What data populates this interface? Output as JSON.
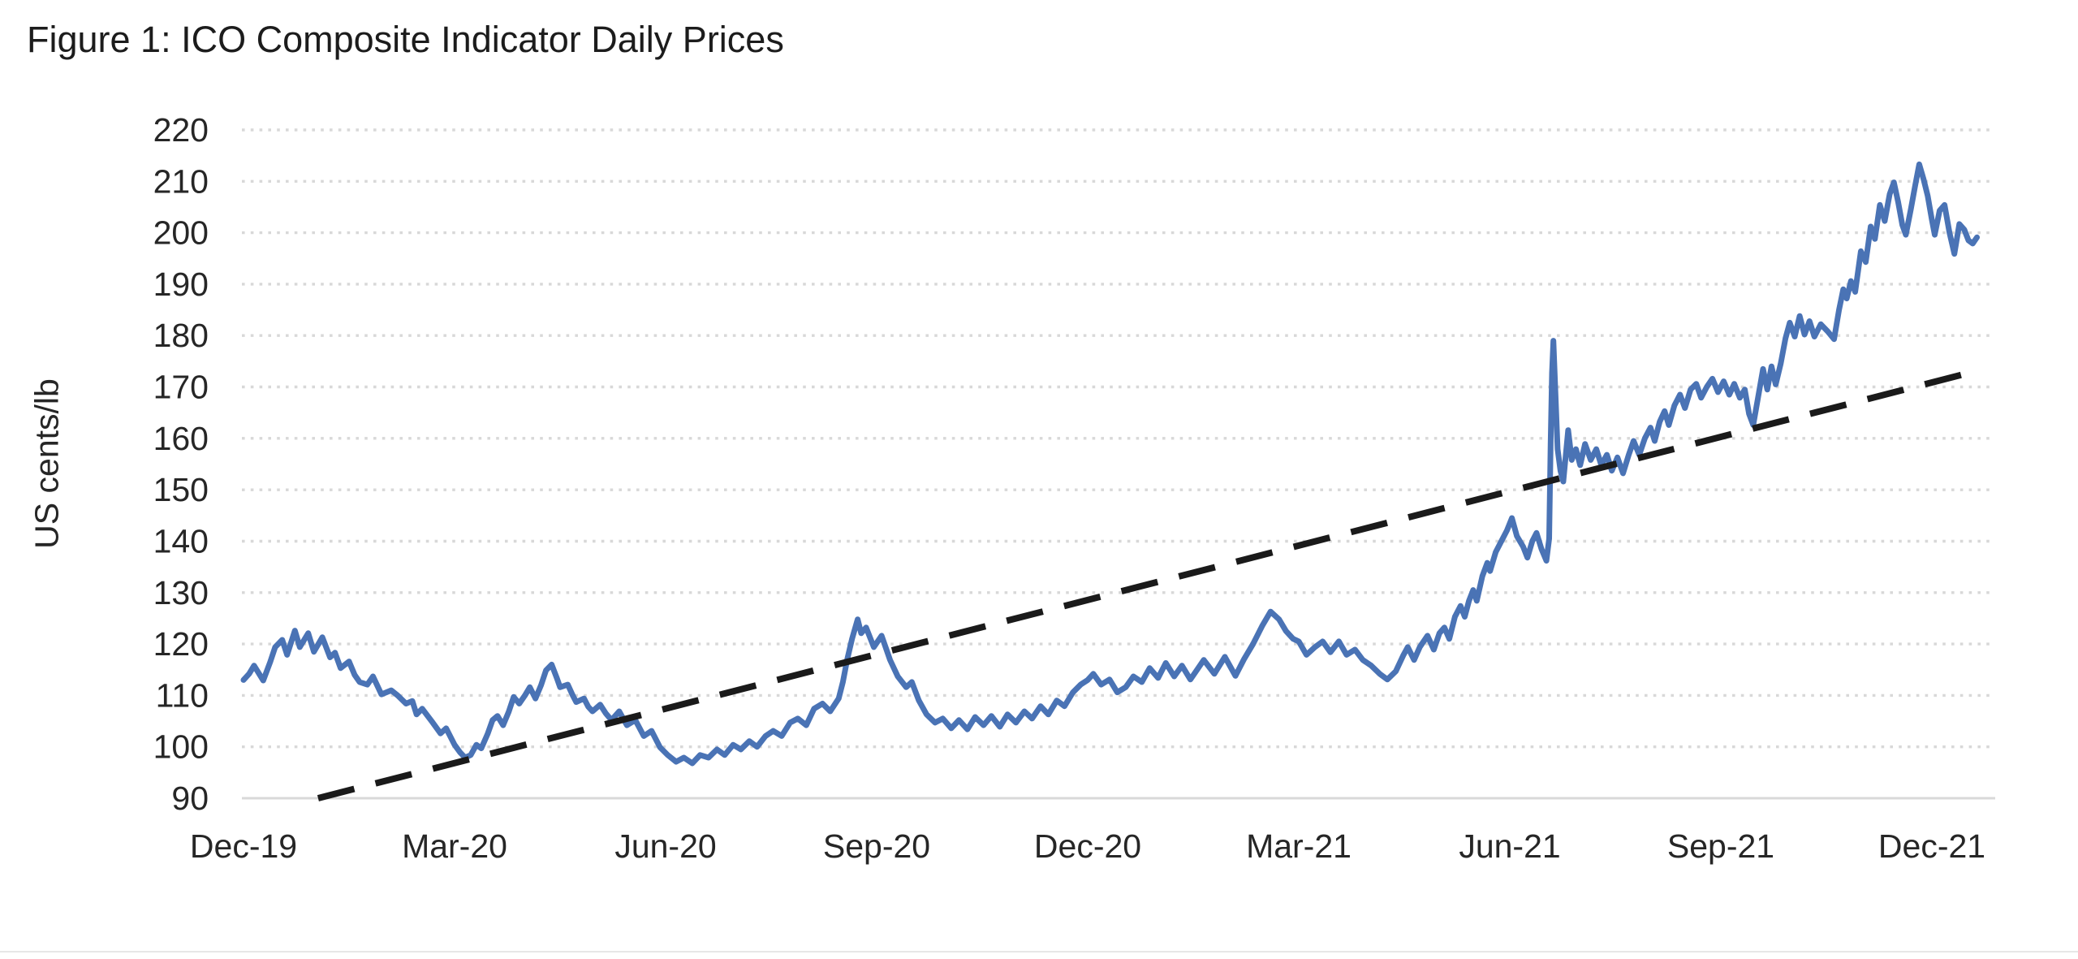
{
  "chart_data": {
    "type": "line",
    "title": "Figure 1: ICO Composite Indicator Daily Prices",
    "xlabel": "",
    "ylabel": "US cents/lb",
    "ylim": [
      90,
      220
    ],
    "y_ticks": [
      90,
      100,
      110,
      120,
      130,
      140,
      150,
      160,
      170,
      180,
      190,
      200,
      210,
      220
    ],
    "x_tick_labels": [
      "Dec-19",
      "Mar-20",
      "Jun-20",
      "Sep-20",
      "Dec-20",
      "Mar-21",
      "Jun-21",
      "Sep-21",
      "Dec-21"
    ],
    "x_unit": "months since Dec-2019 tick (3 months between labelled ticks)",
    "grid": "horizontal dotted gridlines, no vertical gridlines",
    "legend": "none",
    "colors": {
      "grid": "#d8d8d8",
      "axis": "#d9d9d9",
      "text": "#262626"
    },
    "series": [
      {
        "name": "ICO composite indicator daily price",
        "style": "solid",
        "color": "#4a73b5",
        "points": [
          [
            0.0,
            113.0
          ],
          [
            0.08,
            114.2
          ],
          [
            0.15,
            115.8
          ],
          [
            0.28,
            112.9
          ],
          [
            0.38,
            116.5
          ],
          [
            0.45,
            119.4
          ],
          [
            0.55,
            120.8
          ],
          [
            0.62,
            117.9
          ],
          [
            0.73,
            122.6
          ],
          [
            0.8,
            119.4
          ],
          [
            0.92,
            122.1
          ],
          [
            1.0,
            118.5
          ],
          [
            1.12,
            121.3
          ],
          [
            1.23,
            117.4
          ],
          [
            1.3,
            118.3
          ],
          [
            1.38,
            115.3
          ],
          [
            1.5,
            116.6
          ],
          [
            1.58,
            114.0
          ],
          [
            1.65,
            112.6
          ],
          [
            1.76,
            112.1
          ],
          [
            1.84,
            113.7
          ],
          [
            1.96,
            110.2
          ],
          [
            2.1,
            111.0
          ],
          [
            2.19,
            110.0
          ],
          [
            2.31,
            108.4
          ],
          [
            2.4,
            108.9
          ],
          [
            2.46,
            106.3
          ],
          [
            2.54,
            107.4
          ],
          [
            2.69,
            104.7
          ],
          [
            2.8,
            102.6
          ],
          [
            2.88,
            103.6
          ],
          [
            3.0,
            100.4
          ],
          [
            3.08,
            98.9
          ],
          [
            3.15,
            97.9
          ],
          [
            3.23,
            98.4
          ],
          [
            3.31,
            100.4
          ],
          [
            3.38,
            99.7
          ],
          [
            3.47,
            102.5
          ],
          [
            3.54,
            105.2
          ],
          [
            3.61,
            106.0
          ],
          [
            3.69,
            104.2
          ],
          [
            3.77,
            106.8
          ],
          [
            3.84,
            109.7
          ],
          [
            3.92,
            108.4
          ],
          [
            4.0,
            110.0
          ],
          [
            4.07,
            111.6
          ],
          [
            4.15,
            109.4
          ],
          [
            4.23,
            112.0
          ],
          [
            4.3,
            114.9
          ],
          [
            4.38,
            116.0
          ],
          [
            4.45,
            113.5
          ],
          [
            4.5,
            111.6
          ],
          [
            4.61,
            112.1
          ],
          [
            4.68,
            110.0
          ],
          [
            4.73,
            108.7
          ],
          [
            4.84,
            109.4
          ],
          [
            4.9,
            107.8
          ],
          [
            4.96,
            106.9
          ],
          [
            5.07,
            108.2
          ],
          [
            5.15,
            106.5
          ],
          [
            5.23,
            105.2
          ],
          [
            5.34,
            106.9
          ],
          [
            5.45,
            104.2
          ],
          [
            5.57,
            105.2
          ],
          [
            5.69,
            102.1
          ],
          [
            5.8,
            103.1
          ],
          [
            5.92,
            99.9
          ],
          [
            6.03,
            98.4
          ],
          [
            6.15,
            97.1
          ],
          [
            6.26,
            97.9
          ],
          [
            6.38,
            96.8
          ],
          [
            6.49,
            98.4
          ],
          [
            6.61,
            97.9
          ],
          [
            6.73,
            99.5
          ],
          [
            6.84,
            98.4
          ],
          [
            6.96,
            100.4
          ],
          [
            7.07,
            99.5
          ],
          [
            7.19,
            101.1
          ],
          [
            7.3,
            100.0
          ],
          [
            7.42,
            102.1
          ],
          [
            7.53,
            103.1
          ],
          [
            7.65,
            102.1
          ],
          [
            7.77,
            104.7
          ],
          [
            7.88,
            105.5
          ],
          [
            8.0,
            104.2
          ],
          [
            8.11,
            107.4
          ],
          [
            8.23,
            108.4
          ],
          [
            8.34,
            106.9
          ],
          [
            8.46,
            109.4
          ],
          [
            8.52,
            112.6
          ],
          [
            8.58,
            116.9
          ],
          [
            8.65,
            121.0
          ],
          [
            8.73,
            124.8
          ],
          [
            8.78,
            122.1
          ],
          [
            8.85,
            123.2
          ],
          [
            8.96,
            119.4
          ],
          [
            9.07,
            121.6
          ],
          [
            9.19,
            116.9
          ],
          [
            9.3,
            113.7
          ],
          [
            9.42,
            111.6
          ],
          [
            9.5,
            112.6
          ],
          [
            9.6,
            109.0
          ],
          [
            9.71,
            106.3
          ],
          [
            9.83,
            104.7
          ],
          [
            9.94,
            105.5
          ],
          [
            10.06,
            103.6
          ],
          [
            10.17,
            105.2
          ],
          [
            10.29,
            103.4
          ],
          [
            10.4,
            105.8
          ],
          [
            10.52,
            104.2
          ],
          [
            10.63,
            106.0
          ],
          [
            10.75,
            103.9
          ],
          [
            10.86,
            106.3
          ],
          [
            10.98,
            104.7
          ],
          [
            11.1,
            106.9
          ],
          [
            11.21,
            105.5
          ],
          [
            11.33,
            107.9
          ],
          [
            11.44,
            106.3
          ],
          [
            11.56,
            109.0
          ],
          [
            11.67,
            107.9
          ],
          [
            11.79,
            110.6
          ],
          [
            11.9,
            112.1
          ],
          [
            12.0,
            113.0
          ],
          [
            12.08,
            114.2
          ],
          [
            12.19,
            112.1
          ],
          [
            12.31,
            113.1
          ],
          [
            12.42,
            110.6
          ],
          [
            12.54,
            111.6
          ],
          [
            12.65,
            113.7
          ],
          [
            12.77,
            112.6
          ],
          [
            12.88,
            115.3
          ],
          [
            13.0,
            113.4
          ],
          [
            13.11,
            116.3
          ],
          [
            13.23,
            113.7
          ],
          [
            13.34,
            115.8
          ],
          [
            13.46,
            113.1
          ],
          [
            13.57,
            115.3
          ],
          [
            13.65,
            116.9
          ],
          [
            13.8,
            114.2
          ],
          [
            13.95,
            117.5
          ],
          [
            14.1,
            113.8
          ],
          [
            14.22,
            117.0
          ],
          [
            14.35,
            120.0
          ],
          [
            14.48,
            123.5
          ],
          [
            14.6,
            126.3
          ],
          [
            14.72,
            124.8
          ],
          [
            14.82,
            122.5
          ],
          [
            14.92,
            121.0
          ],
          [
            15.0,
            120.5
          ],
          [
            15.11,
            117.9
          ],
          [
            15.23,
            119.4
          ],
          [
            15.34,
            120.5
          ],
          [
            15.45,
            118.4
          ],
          [
            15.57,
            120.5
          ],
          [
            15.68,
            117.9
          ],
          [
            15.8,
            118.9
          ],
          [
            15.91,
            116.9
          ],
          [
            16.03,
            115.8
          ],
          [
            16.15,
            114.2
          ],
          [
            16.26,
            113.1
          ],
          [
            16.38,
            114.7
          ],
          [
            16.49,
            117.9
          ],
          [
            16.55,
            119.4
          ],
          [
            16.64,
            116.9
          ],
          [
            16.72,
            119.4
          ],
          [
            16.83,
            121.6
          ],
          [
            16.92,
            118.9
          ],
          [
            17.0,
            122.1
          ],
          [
            17.07,
            123.2
          ],
          [
            17.14,
            121.0
          ],
          [
            17.22,
            125.3
          ],
          [
            17.3,
            127.4
          ],
          [
            17.36,
            125.3
          ],
          [
            17.42,
            128.4
          ],
          [
            17.48,
            130.5
          ],
          [
            17.53,
            128.4
          ],
          [
            17.61,
            133.2
          ],
          [
            17.68,
            135.8
          ],
          [
            17.72,
            134.2
          ],
          [
            17.8,
            137.9
          ],
          [
            17.88,
            140.0
          ],
          [
            17.96,
            142.1
          ],
          [
            18.03,
            144.5
          ],
          [
            18.1,
            141.0
          ],
          [
            18.19,
            138.9
          ],
          [
            18.25,
            136.8
          ],
          [
            18.32,
            140.0
          ],
          [
            18.38,
            141.6
          ],
          [
            18.45,
            138.5
          ],
          [
            18.52,
            136.2
          ],
          [
            18.56,
            140.5
          ],
          [
            18.58,
            158.9
          ],
          [
            18.6,
            172.7
          ],
          [
            18.62,
            179.0
          ],
          [
            18.65,
            168.5
          ],
          [
            18.68,
            157.9
          ],
          [
            18.72,
            153.7
          ],
          [
            18.76,
            151.6
          ],
          [
            18.83,
            161.6
          ],
          [
            18.88,
            155.8
          ],
          [
            18.94,
            157.9
          ],
          [
            19.0,
            154.8
          ],
          [
            19.07,
            158.9
          ],
          [
            19.15,
            155.8
          ],
          [
            19.23,
            157.9
          ],
          [
            19.3,
            154.8
          ],
          [
            19.38,
            156.8
          ],
          [
            19.45,
            153.7
          ],
          [
            19.53,
            156.3
          ],
          [
            19.61,
            153.2
          ],
          [
            19.69,
            156.8
          ],
          [
            19.76,
            159.5
          ],
          [
            19.84,
            156.8
          ],
          [
            19.92,
            160.0
          ],
          [
            20.0,
            162.1
          ],
          [
            20.06,
            159.5
          ],
          [
            20.13,
            163.2
          ],
          [
            20.2,
            165.3
          ],
          [
            20.26,
            162.6
          ],
          [
            20.34,
            166.4
          ],
          [
            20.42,
            168.5
          ],
          [
            20.49,
            165.9
          ],
          [
            20.57,
            169.5
          ],
          [
            20.65,
            170.6
          ],
          [
            20.72,
            167.9
          ],
          [
            20.8,
            170.0
          ],
          [
            20.88,
            171.6
          ],
          [
            20.96,
            169.0
          ],
          [
            21.04,
            171.1
          ],
          [
            21.12,
            168.5
          ],
          [
            21.19,
            170.6
          ],
          [
            21.27,
            167.9
          ],
          [
            21.34,
            169.5
          ],
          [
            21.4,
            164.8
          ],
          [
            21.46,
            162.6
          ],
          [
            21.53,
            168.0
          ],
          [
            21.6,
            173.5
          ],
          [
            21.66,
            169.5
          ],
          [
            21.72,
            174.0
          ],
          [
            21.78,
            170.5
          ],
          [
            21.85,
            174.5
          ],
          [
            21.92,
            179.5
          ],
          [
            21.98,
            182.5
          ],
          [
            22.05,
            179.8
          ],
          [
            22.12,
            183.8
          ],
          [
            22.19,
            180.2
          ],
          [
            22.26,
            182.8
          ],
          [
            22.33,
            179.8
          ],
          [
            22.42,
            182.2
          ],
          [
            22.52,
            180.8
          ],
          [
            22.61,
            179.3
          ],
          [
            22.68,
            185.0
          ],
          [
            22.74,
            189.0
          ],
          [
            22.79,
            187.2
          ],
          [
            22.85,
            190.6
          ],
          [
            22.91,
            188.5
          ],
          [
            22.99,
            196.4
          ],
          [
            23.06,
            194.3
          ],
          [
            23.13,
            201.2
          ],
          [
            23.19,
            198.8
          ],
          [
            23.26,
            205.4
          ],
          [
            23.33,
            202.3
          ],
          [
            23.4,
            207.5
          ],
          [
            23.46,
            209.8
          ],
          [
            23.52,
            206.0
          ],
          [
            23.58,
            201.5
          ],
          [
            23.63,
            199.6
          ],
          [
            23.7,
            204.5
          ],
          [
            23.76,
            209.0
          ],
          [
            23.82,
            213.3
          ],
          [
            23.88,
            210.5
          ],
          [
            23.94,
            207.2
          ],
          [
            24.0,
            202.5
          ],
          [
            24.04,
            199.6
          ],
          [
            24.11,
            204.3
          ],
          [
            24.18,
            205.4
          ],
          [
            24.25,
            200.0
          ],
          [
            24.32,
            195.9
          ],
          [
            24.39,
            201.7
          ],
          [
            24.46,
            200.6
          ],
          [
            24.52,
            198.5
          ],
          [
            24.58,
            197.9
          ],
          [
            24.64,
            199.1
          ]
        ]
      },
      {
        "name": "linear trend",
        "style": "dashed",
        "color": "#1a1a1a",
        "points": [
          [
            1.06,
            90.0
          ],
          [
            24.66,
            173.2
          ]
        ]
      }
    ]
  }
}
